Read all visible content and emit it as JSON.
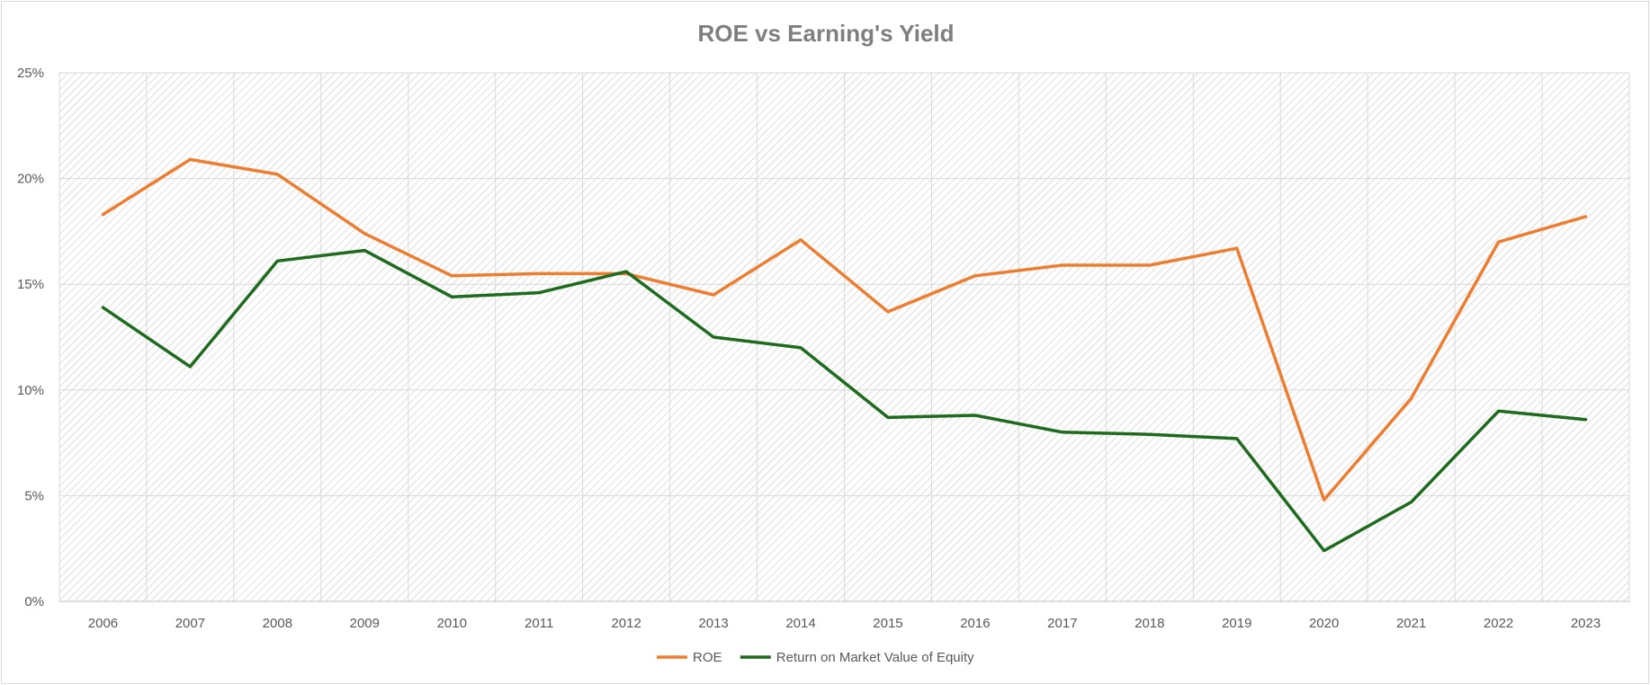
{
  "chart_data": {
    "type": "line",
    "title": "ROE vs Earning's Yield",
    "xlabel": "",
    "ylabel": "",
    "categories": [
      "2006",
      "2007",
      "2008",
      "2009",
      "2010",
      "2011",
      "2012",
      "2013",
      "2014",
      "2015",
      "2016",
      "2017",
      "2018",
      "2019",
      "2020",
      "2021",
      "2022",
      "2023"
    ],
    "ylim": [
      0,
      25
    ],
    "yticks": [
      0,
      5,
      10,
      15,
      20,
      25
    ],
    "ytick_labels": [
      "0%",
      "5%",
      "10%",
      "15%",
      "20%",
      "25%"
    ],
    "grid": true,
    "legend_position": "bottom",
    "series": [
      {
        "name": "ROE",
        "color": "#ED7D31",
        "values": [
          18.3,
          20.9,
          20.2,
          17.4,
          15.4,
          15.5,
          15.5,
          14.5,
          17.1,
          13.7,
          15.4,
          15.9,
          15.9,
          16.7,
          4.8,
          9.6,
          17.0,
          18.2
        ]
      },
      {
        "name": "Return on Market Value of Equity",
        "color": "#1E6B1E",
        "values": [
          13.9,
          11.1,
          16.1,
          16.6,
          14.4,
          14.6,
          15.6,
          12.5,
          12.0,
          8.7,
          8.8,
          8.0,
          7.9,
          7.7,
          2.4,
          4.7,
          9.0,
          8.6
        ]
      }
    ]
  }
}
